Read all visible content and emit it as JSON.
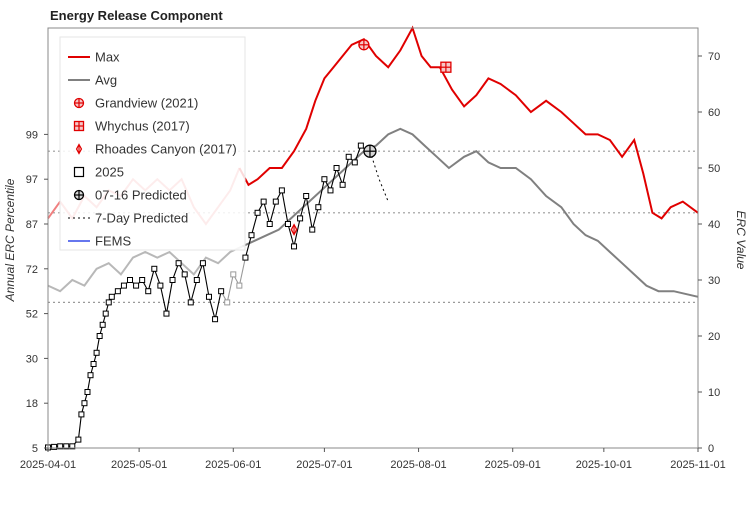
{
  "chart_data": {
    "type": "line",
    "title": "Energy Release Component",
    "ylabel_left": "Annual ERC Percentile",
    "ylabel_right": "ERC Value",
    "x_range": [
      "2025-04-01",
      "2025-11-01"
    ],
    "x_ticks": [
      "2025-04-01",
      "2025-05-01",
      "2025-06-01",
      "2025-07-01",
      "2025-08-01",
      "2025-09-01",
      "2025-10-01",
      "2025-11-01"
    ],
    "right_ylim": [
      0,
      75
    ],
    "right_ticks": [
      0,
      10,
      20,
      30,
      40,
      50,
      60,
      70
    ],
    "left_percentile_ticks": [
      {
        "label": "5",
        "erc": 0
      },
      {
        "label": "18",
        "erc": 8
      },
      {
        "label": "30",
        "erc": 16
      },
      {
        "label": "52",
        "erc": 24
      },
      {
        "label": "72",
        "erc": 32
      },
      {
        "label": "87",
        "erc": 40
      },
      {
        "label": "97",
        "erc": 48
      },
      {
        "label": "99",
        "erc": 56
      }
    ],
    "percentile_lines_erc": [
      26,
      42,
      53
    ],
    "legend": {
      "placement": "top-left",
      "entries": [
        "Max",
        "Avg",
        "Grandview (2021)",
        "Whychus (2017)",
        "Rhoades Canyon (2017)",
        "2025",
        "07-16 Predicted",
        "7-Day Predicted",
        "FEMS"
      ]
    },
    "series": [
      {
        "name": "Max",
        "color": "#e00000",
        "faded_color": "#f08080",
        "faded_until": "2025-06-05",
        "points": [
          [
            "2025-04-01",
            41
          ],
          [
            "2025-04-05",
            44
          ],
          [
            "2025-04-09",
            41
          ],
          [
            "2025-04-13",
            45
          ],
          [
            "2025-04-17",
            43
          ],
          [
            "2025-04-21",
            46
          ],
          [
            "2025-04-25",
            45
          ],
          [
            "2025-04-29",
            48
          ],
          [
            "2025-05-03",
            46
          ],
          [
            "2025-05-07",
            48
          ],
          [
            "2025-05-11",
            46
          ],
          [
            "2025-05-15",
            48
          ],
          [
            "2025-05-19",
            43
          ],
          [
            "2025-05-23",
            40
          ],
          [
            "2025-05-27",
            43
          ],
          [
            "2025-05-31",
            46
          ],
          [
            "2025-06-03",
            50
          ],
          [
            "2025-06-06",
            47
          ],
          [
            "2025-06-09",
            48
          ],
          [
            "2025-06-13",
            50
          ],
          [
            "2025-06-17",
            50
          ],
          [
            "2025-06-21",
            53
          ],
          [
            "2025-06-25",
            57
          ],
          [
            "2025-06-28",
            62
          ],
          [
            "2025-07-01",
            66
          ],
          [
            "2025-07-04",
            68
          ],
          [
            "2025-07-07",
            70
          ],
          [
            "2025-07-10",
            72
          ],
          [
            "2025-07-14",
            73
          ],
          [
            "2025-07-18",
            70
          ],
          [
            "2025-07-22",
            68
          ],
          [
            "2025-07-26",
            71
          ],
          [
            "2025-07-30",
            75
          ],
          [
            "2025-08-02",
            70
          ],
          [
            "2025-08-05",
            68
          ],
          [
            "2025-08-08",
            68
          ],
          [
            "2025-08-12",
            64
          ],
          [
            "2025-08-16",
            61
          ],
          [
            "2025-08-20",
            63
          ],
          [
            "2025-08-24",
            66
          ],
          [
            "2025-08-28",
            65
          ],
          [
            "2025-09-02",
            63
          ],
          [
            "2025-09-07",
            60
          ],
          [
            "2025-09-12",
            62
          ],
          [
            "2025-09-17",
            60
          ],
          [
            "2025-09-21",
            58
          ],
          [
            "2025-09-25",
            56
          ],
          [
            "2025-09-29",
            56
          ],
          [
            "2025-10-03",
            55
          ],
          [
            "2025-10-07",
            52
          ],
          [
            "2025-10-11",
            55
          ],
          [
            "2025-10-14",
            49
          ],
          [
            "2025-10-17",
            42
          ],
          [
            "2025-10-20",
            41
          ],
          [
            "2025-10-23",
            43
          ],
          [
            "2025-10-27",
            44
          ],
          [
            "2025-11-01",
            42
          ]
        ]
      },
      {
        "name": "Avg",
        "color": "#808080",
        "faded_color": "#b8b8b8",
        "faded_until": "2025-06-05",
        "points": [
          [
            "2025-04-01",
            29
          ],
          [
            "2025-04-05",
            28
          ],
          [
            "2025-04-09",
            30
          ],
          [
            "2025-04-13",
            29
          ],
          [
            "2025-04-17",
            32
          ],
          [
            "2025-04-21",
            33
          ],
          [
            "2025-04-25",
            31
          ],
          [
            "2025-04-29",
            34
          ],
          [
            "2025-05-03",
            35
          ],
          [
            "2025-05-07",
            34
          ],
          [
            "2025-05-11",
            35
          ],
          [
            "2025-05-15",
            33
          ],
          [
            "2025-05-19",
            31
          ],
          [
            "2025-05-23",
            34
          ],
          [
            "2025-05-27",
            33
          ],
          [
            "2025-05-31",
            35
          ],
          [
            "2025-06-04",
            36
          ],
          [
            "2025-06-08",
            37
          ],
          [
            "2025-06-12",
            38
          ],
          [
            "2025-06-16",
            39
          ],
          [
            "2025-06-20",
            41
          ],
          [
            "2025-06-24",
            43
          ],
          [
            "2025-06-28",
            45
          ],
          [
            "2025-07-02",
            47
          ],
          [
            "2025-07-06",
            49
          ],
          [
            "2025-07-10",
            51
          ],
          [
            "2025-07-14",
            53
          ],
          [
            "2025-07-18",
            54
          ],
          [
            "2025-07-22",
            56
          ],
          [
            "2025-07-26",
            57
          ],
          [
            "2025-07-30",
            56
          ],
          [
            "2025-08-03",
            54
          ],
          [
            "2025-08-07",
            52
          ],
          [
            "2025-08-11",
            50
          ],
          [
            "2025-08-16",
            52
          ],
          [
            "2025-08-20",
            53
          ],
          [
            "2025-08-24",
            51
          ],
          [
            "2025-08-28",
            50
          ],
          [
            "2025-09-02",
            50
          ],
          [
            "2025-09-07",
            48
          ],
          [
            "2025-09-12",
            45
          ],
          [
            "2025-09-17",
            43
          ],
          [
            "2025-09-21",
            40
          ],
          [
            "2025-09-25",
            38
          ],
          [
            "2025-09-29",
            37
          ],
          [
            "2025-10-03",
            35
          ],
          [
            "2025-10-07",
            33
          ],
          [
            "2025-10-11",
            31
          ],
          [
            "2025-10-15",
            29
          ],
          [
            "2025-10-19",
            28
          ],
          [
            "2025-10-24",
            28
          ],
          [
            "2025-11-01",
            27
          ]
        ]
      },
      {
        "name": "2025",
        "color": "#000000",
        "faded_color": "#9a9a9a",
        "faded_after": "2025-05-29",
        "faded_before": "2025-06-05",
        "points": [
          [
            "2025-04-01",
            0.1
          ],
          [
            "2025-04-03",
            0.2
          ],
          [
            "2025-04-05",
            0.3
          ],
          [
            "2025-04-07",
            0.3
          ],
          [
            "2025-04-09",
            0.3
          ],
          [
            "2025-04-11",
            1.5
          ],
          [
            "2025-04-12",
            6
          ],
          [
            "2025-04-13",
            8
          ],
          [
            "2025-04-14",
            10
          ],
          [
            "2025-04-15",
            13
          ],
          [
            "2025-04-16",
            15
          ],
          [
            "2025-04-17",
            17
          ],
          [
            "2025-04-18",
            20
          ],
          [
            "2025-04-19",
            22
          ],
          [
            "2025-04-20",
            24
          ],
          [
            "2025-04-21",
            26
          ],
          [
            "2025-04-22",
            27
          ],
          [
            "2025-04-24",
            28
          ],
          [
            "2025-04-26",
            29
          ],
          [
            "2025-04-28",
            30
          ],
          [
            "2025-04-30",
            29
          ],
          [
            "2025-05-02",
            30
          ],
          [
            "2025-05-04",
            28
          ],
          [
            "2025-05-06",
            32
          ],
          [
            "2025-05-08",
            29
          ],
          [
            "2025-05-10",
            24
          ],
          [
            "2025-05-12",
            30
          ],
          [
            "2025-05-14",
            33
          ],
          [
            "2025-05-16",
            31
          ],
          [
            "2025-05-18",
            26
          ],
          [
            "2025-05-20",
            30
          ],
          [
            "2025-05-22",
            33
          ],
          [
            "2025-05-24",
            27
          ],
          [
            "2025-05-26",
            23
          ],
          [
            "2025-05-28",
            28
          ],
          [
            "2025-05-30",
            26
          ],
          [
            "2025-06-01",
            31
          ],
          [
            "2025-06-03",
            29
          ],
          [
            "2025-06-05",
            34
          ],
          [
            "2025-06-07",
            38
          ],
          [
            "2025-06-09",
            42
          ],
          [
            "2025-06-11",
            44
          ],
          [
            "2025-06-13",
            40
          ],
          [
            "2025-06-15",
            44
          ],
          [
            "2025-06-17",
            46
          ],
          [
            "2025-06-19",
            40
          ],
          [
            "2025-06-21",
            36
          ],
          [
            "2025-06-23",
            41
          ],
          [
            "2025-06-25",
            45
          ],
          [
            "2025-06-27",
            39
          ],
          [
            "2025-06-29",
            43
          ],
          [
            "2025-07-01",
            48
          ],
          [
            "2025-07-03",
            46
          ],
          [
            "2025-07-05",
            50
          ],
          [
            "2025-07-07",
            47
          ],
          [
            "2025-07-09",
            52
          ],
          [
            "2025-07-11",
            51
          ],
          [
            "2025-07-13",
            54
          ],
          [
            "2025-07-15",
            53
          ]
        ]
      },
      {
        "name": "7-Day Predicted",
        "color": "#000000",
        "dashed": true,
        "points": [
          [
            "2025-07-16",
            53
          ],
          [
            "2025-07-19",
            48
          ],
          [
            "2025-07-22",
            44
          ]
        ]
      }
    ],
    "markers": [
      {
        "name": "Grandview (2021)",
        "date": "2025-07-14",
        "erc": 72,
        "color": "#e00000",
        "shape": "circle-plus"
      },
      {
        "name": "Whychus (2017)",
        "date": "2025-08-10",
        "erc": 68,
        "color": "#e00000",
        "shape": "square-plus"
      },
      {
        "name": "Rhoades Canyon (2017)",
        "date": "2025-06-21",
        "erc": 39,
        "color": "#e00000",
        "shape": "thin-diamond"
      },
      {
        "name": "07-16 Predicted",
        "date": "2025-07-16",
        "erc": 53,
        "color": "#000000",
        "shape": "circle-plus"
      }
    ]
  }
}
